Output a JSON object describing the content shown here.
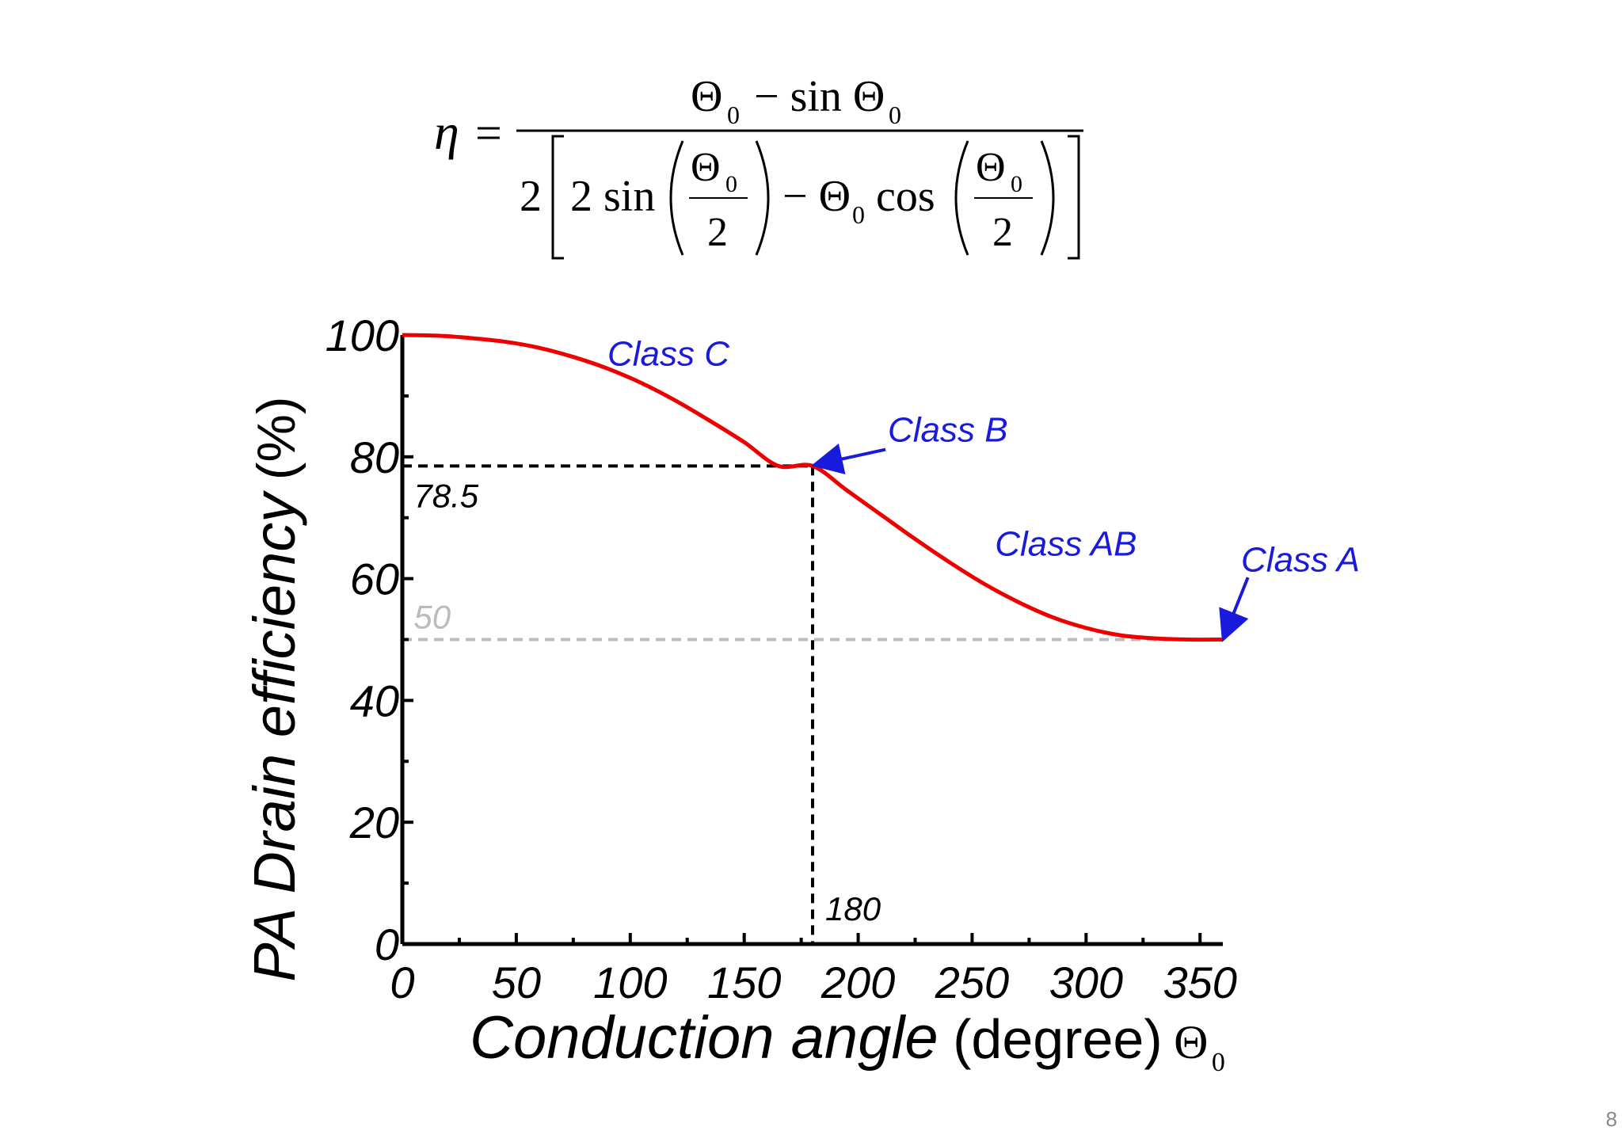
{
  "formula": {
    "lhs": "η =",
    "numerator": "Θ₀ − sin Θ₀",
    "denominator": "2[2sin(Θ₀/2) − Θ₀ cos(Θ₀/2)]"
  },
  "chart_data": {
    "type": "line",
    "xlabel": "Conduction angle (degree) Θ₀",
    "xlabel_italic": "Conduction angle",
    "xlabel_unit": "(degree)",
    "xlabel_symbol": "Θ",
    "xlabel_symbol_sub": "0",
    "ylabel": "PA Drain efficiency (%)",
    "ylabel_italic": "PA Drain efficiency",
    "ylabel_unit": "(%)",
    "xlim": [
      0,
      360
    ],
    "ylim": [
      0,
      100
    ],
    "x_ticks": [
      "0",
      "50",
      "100",
      "150",
      "200",
      "250",
      "300",
      "350"
    ],
    "y_ticks": [
      "0",
      "20",
      "40",
      "60",
      "80",
      "100"
    ],
    "grid": false,
    "series": [
      {
        "color": "#ee0000",
        "x": [
          0,
          15,
          30,
          45,
          60,
          75,
          90,
          105,
          120,
          135,
          150,
          165,
          180,
          195,
          210,
          225,
          240,
          255,
          270,
          285,
          300,
          315,
          330,
          345,
          360
        ],
        "y": [
          100,
          99.9,
          99.5,
          98.9,
          97.9,
          96.4,
          94.5,
          92.1,
          89.2,
          85.9,
          82.4,
          78.5,
          78.5,
          74.5,
          70.5,
          66.5,
          62.7,
          59.2,
          56.2,
          53.7,
          51.9,
          50.7,
          50.2,
          50.0,
          50.0
        ]
      }
    ],
    "reference_lines": [
      {
        "label": "78.5",
        "y": 78.5,
        "x": 180,
        "color": "#000000"
      },
      {
        "label": "180",
        "x": 180,
        "color": "#000000"
      },
      {
        "label": "50",
        "y": 50,
        "color": "#bbbbbb"
      }
    ],
    "annotations": [
      {
        "text": "Class C",
        "color": "#1a1adc"
      },
      {
        "text": "Class B",
        "color": "#1a1adc",
        "points_to": [
          180,
          78.5
        ]
      },
      {
        "text": "Class AB",
        "color": "#1a1adc"
      },
      {
        "text": "Class A",
        "color": "#1a1adc",
        "points_to": [
          360,
          50
        ]
      }
    ]
  },
  "slide_number": "8"
}
